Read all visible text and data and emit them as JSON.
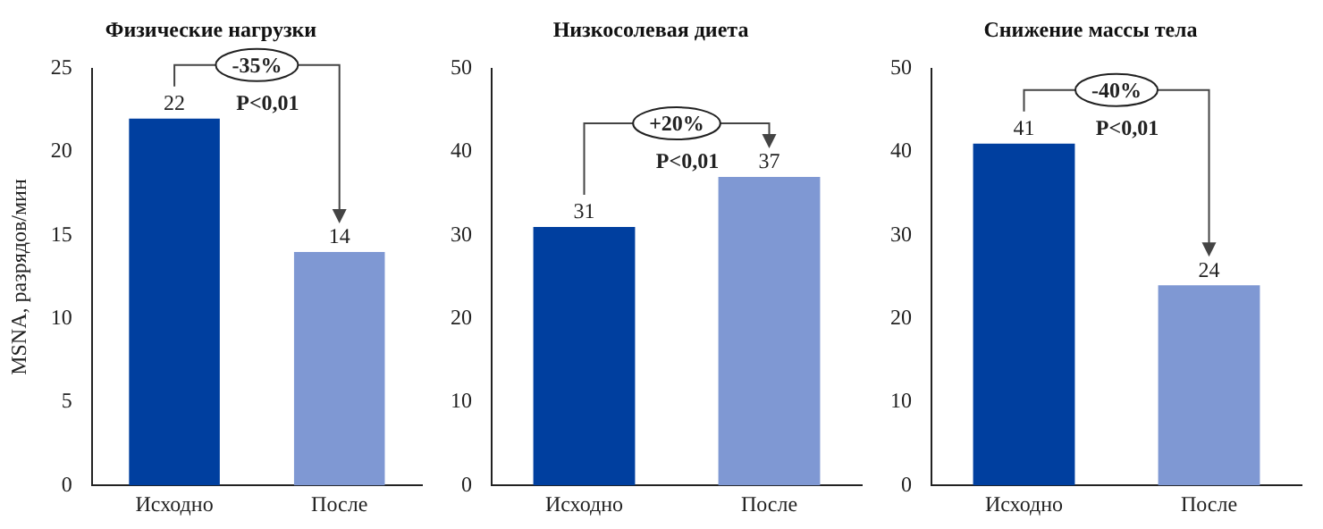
{
  "chart_data": [
    {
      "type": "bar",
      "title": "Физические нагрузки",
      "ylabel": "MSNA, разрядов/мин",
      "categories": [
        "Исходно",
        "После"
      ],
      "values": [
        22,
        14
      ],
      "colors": [
        "#003f9f",
        "#7f98d3"
      ],
      "ylim": [
        0,
        25
      ],
      "yticks": [
        0,
        5,
        10,
        15,
        20,
        25
      ],
      "data_labels": true,
      "annotations": [
        "-35%",
        "P<0,01"
      ]
    },
    {
      "type": "bar",
      "title": "Низкосолевая диета",
      "categories": [
        "Исходно",
        "После"
      ],
      "values": [
        31,
        37
      ],
      "colors": [
        "#003f9f",
        "#7f98d3"
      ],
      "ylim": [
        0,
        50
      ],
      "yticks": [
        0,
        10,
        20,
        30,
        40,
        50
      ],
      "data_labels": true,
      "annotations": [
        "+20%",
        "P<0,01"
      ]
    },
    {
      "type": "bar",
      "title": "Снижение массы тела",
      "categories": [
        "Исходно",
        "После"
      ],
      "values": [
        41,
        24
      ],
      "colors": [
        "#003f9f",
        "#7f98d3"
      ],
      "ylim": [
        0,
        50
      ],
      "yticks": [
        0,
        10,
        20,
        30,
        40,
        50
      ],
      "data_labels": true,
      "annotations": [
        "-40%",
        "P<0,01"
      ]
    }
  ]
}
